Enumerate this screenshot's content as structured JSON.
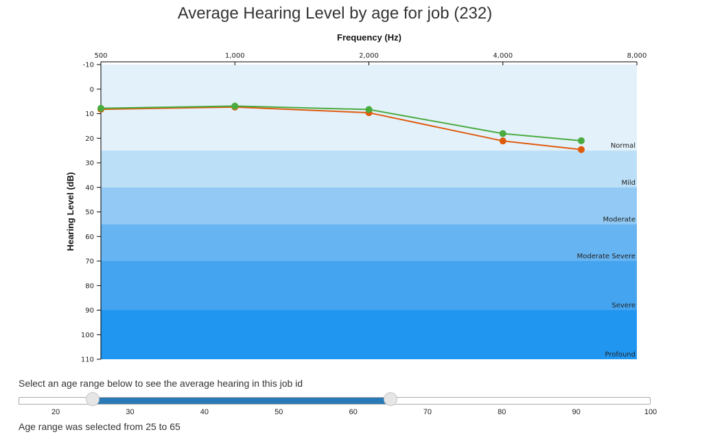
{
  "chart_data": {
    "type": "line",
    "title": "Average Hearing Level by age for job (232)",
    "xlabel": "Frequency (Hz)",
    "ylabel": "Hearing Level (dB)",
    "x": [
      500,
      1000,
      2000,
      4000,
      6000
    ],
    "x_ticks": [
      500,
      1000,
      2000,
      4000,
      8000
    ],
    "x_tick_labels": [
      "500",
      "1,000",
      "2,000",
      "4,000",
      "8,000"
    ],
    "x_scale": "log2",
    "xlim": [
      500,
      8000
    ],
    "ylim": [
      -10,
      110
    ],
    "y_ticks": [
      -10,
      0,
      10,
      20,
      30,
      40,
      50,
      60,
      70,
      80,
      90,
      100,
      110
    ],
    "y_inverted": true,
    "series": [
      {
        "color": "#e05a0c",
        "values": [
          8.2,
          7.3,
          9.6,
          21.1,
          24.6
        ]
      },
      {
        "color": "#4aab3f",
        "values": [
          7.8,
          6.9,
          8.3,
          18.1,
          21.0
        ]
      }
    ],
    "bands": [
      {
        "label": "Normal",
        "from": -10,
        "to": 25,
        "color": "#e3f1fb"
      },
      {
        "label": "Mild",
        "from": 25,
        "to": 40,
        "color": "#bcdff8"
      },
      {
        "label": "Moderate",
        "from": 40,
        "to": 55,
        "color": "#92caf5"
      },
      {
        "label": "Moderate Severe",
        "from": 55,
        "to": 70,
        "color": "#67b4f2"
      },
      {
        "label": "Severe",
        "from": 70,
        "to": 90,
        "color": "#44a4f0"
      },
      {
        "label": "Profound",
        "from": 90,
        "to": 110,
        "color": "#2196f0"
      }
    ]
  },
  "slider": {
    "prompt": "Select an age range below to see the average hearing in this job id",
    "min": 15,
    "max": 100,
    "ticks": [
      20,
      30,
      40,
      50,
      60,
      70,
      80,
      90,
      100
    ],
    "value_low": 25,
    "value_high": 65,
    "range_color": "#2a7ab8",
    "selection_text": "Age range was selected from 25 to 65"
  }
}
